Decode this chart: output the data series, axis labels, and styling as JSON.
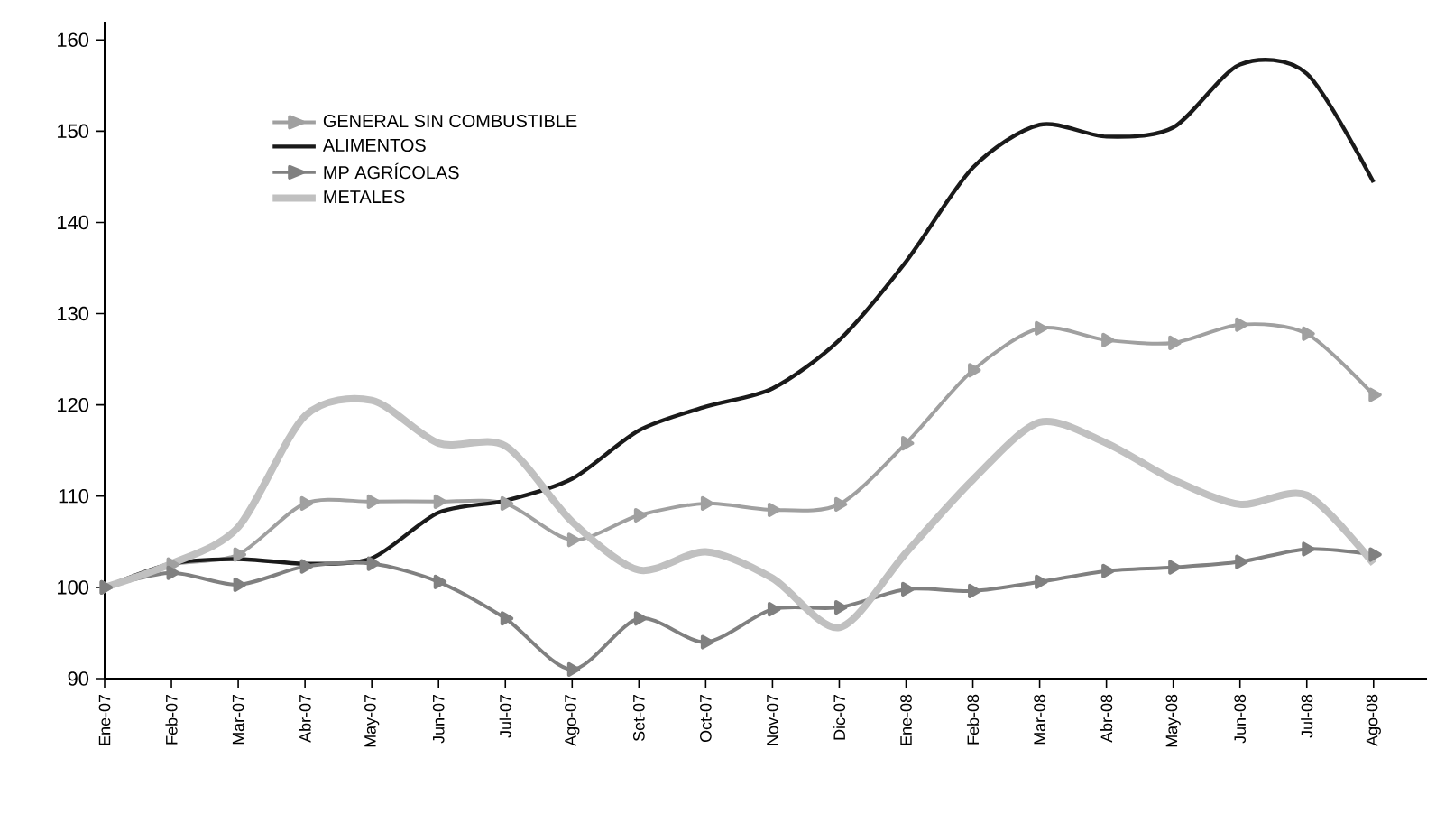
{
  "chart_data": {
    "type": "line",
    "categories": [
      "Ene-07",
      "Feb-07",
      "Mar-07",
      "Abr-07",
      "May-07",
      "Jun-07",
      "Jul-07",
      "Ago-07",
      "Set-07",
      "Oct-07",
      "Nov-07",
      "Dic-07",
      "Ene-08",
      "Feb-08",
      "Mar-08",
      "Abr-08",
      "May-08",
      "Jun-08",
      "Jul-08",
      "Ago-08"
    ],
    "series": [
      {
        "name": "GENERAL SIN COMBUSTIBLE",
        "color": "#a0a0a0",
        "marker": "triangle",
        "values": [
          100,
          102.5,
          103.6,
          109.2,
          109.4,
          109.4,
          109.2,
          105.2,
          107.9,
          109.2,
          108.5,
          109.1,
          115.8,
          123.8,
          128.4,
          127.1,
          126.8,
          128.8,
          127.8,
          121.1
        ]
      },
      {
        "name": "ALIMENTOS",
        "color": "#1a1a1a",
        "values": [
          100,
          102.6,
          103.1,
          102.6,
          103.2,
          108.2,
          109.5,
          111.9,
          117.2,
          119.8,
          121.8,
          127.1,
          135.7,
          146,
          150.7,
          149.4,
          150.4,
          157.3,
          156.3,
          144.4
        ]
      },
      {
        "name": "MP AGRÍCOLAS",
        "color": "#808080",
        "marker": "triangle",
        "values": [
          100,
          101.6,
          100.3,
          102.3,
          102.6,
          100.6,
          96.6,
          91,
          96.6,
          94,
          97.6,
          97.8,
          99.8,
          99.6,
          100.6,
          101.8,
          102.2,
          102.8,
          104.2,
          103.6
        ]
      },
      {
        "name": "METALES",
        "color": "#c0c0c0",
        "values": [
          100,
          102.6,
          106.6,
          118.8,
          120.5,
          115.8,
          115.5,
          107.2,
          101.9,
          103.9,
          101,
          95.6,
          103.8,
          111.8,
          118.1,
          115.8,
          111.8,
          109.1,
          110.1,
          102.6
        ]
      }
    ],
    "ylim": [
      90,
      162
    ],
    "yticks": [
      90,
      100,
      110,
      120,
      130,
      140,
      150,
      160
    ],
    "legend": "top left",
    "grid": false
  }
}
